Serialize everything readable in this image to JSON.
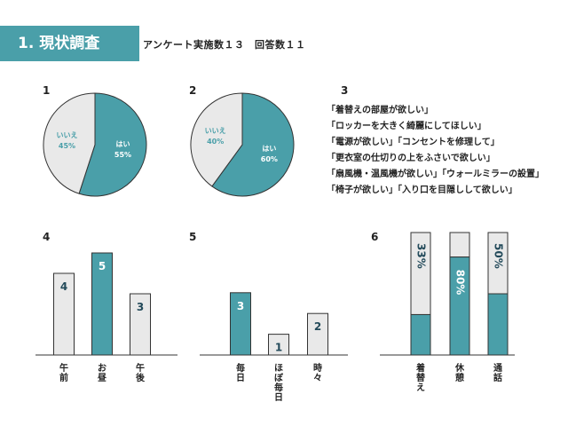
{
  "header": {
    "title": "1. 現状調査",
    "subtitle": "アンケート実施数１３　回答数１１"
  },
  "colors": {
    "teal": "#4a9fa9",
    "light": "#e9e9e9",
    "stroke": "#333333"
  },
  "comments": {
    "number": "3",
    "lines": [
      "「着替えの部屋が欲しい」",
      "「ロッカーを大きく綺麗にしてほしい」",
      "「電源が欲しい」「コンセントを修理して」",
      "「更衣室の仕切りの上をふさいで欲しい」",
      "「扇風機・温風機が欲しい」「ウォールミラーの設置」",
      "「椅子が欲しい」「入り口を目隠しして欲しい」"
    ]
  },
  "chart_data": [
    {
      "number": "1",
      "type": "pie",
      "slices": [
        {
          "label": "はい",
          "pct_label": "55%",
          "value": 55,
          "color": "#4a9fa9"
        },
        {
          "label": "いいえ",
          "pct_label": "45%",
          "value": 45,
          "color": "#e9e9e9"
        }
      ]
    },
    {
      "number": "2",
      "type": "pie",
      "slices": [
        {
          "label": "はい",
          "pct_label": "60%",
          "value": 60,
          "color": "#4a9fa9"
        },
        {
          "label": "いいえ",
          "pct_label": "40%",
          "value": 40,
          "color": "#e9e9e9"
        }
      ]
    },
    {
      "number": "4",
      "type": "bar",
      "ylim": [
        0,
        5
      ],
      "categories": [
        "午前",
        "お昼",
        "午後"
      ],
      "values": [
        4,
        5,
        3
      ],
      "highlight": [
        false,
        true,
        false
      ]
    },
    {
      "number": "5",
      "type": "bar",
      "ylim": [
        0,
        5
      ],
      "categories": [
        "毎日",
        "ほぼ毎日",
        "時々"
      ],
      "values": [
        3,
        1,
        2
      ],
      "highlight": [
        true,
        false,
        false
      ]
    },
    {
      "number": "6",
      "type": "bar",
      "stacked": true,
      "categories": [
        "着替え",
        "休憩",
        "通話"
      ],
      "values": [
        33,
        80,
        50
      ],
      "labels": [
        "33%",
        "80%",
        "50%"
      ]
    }
  ]
}
